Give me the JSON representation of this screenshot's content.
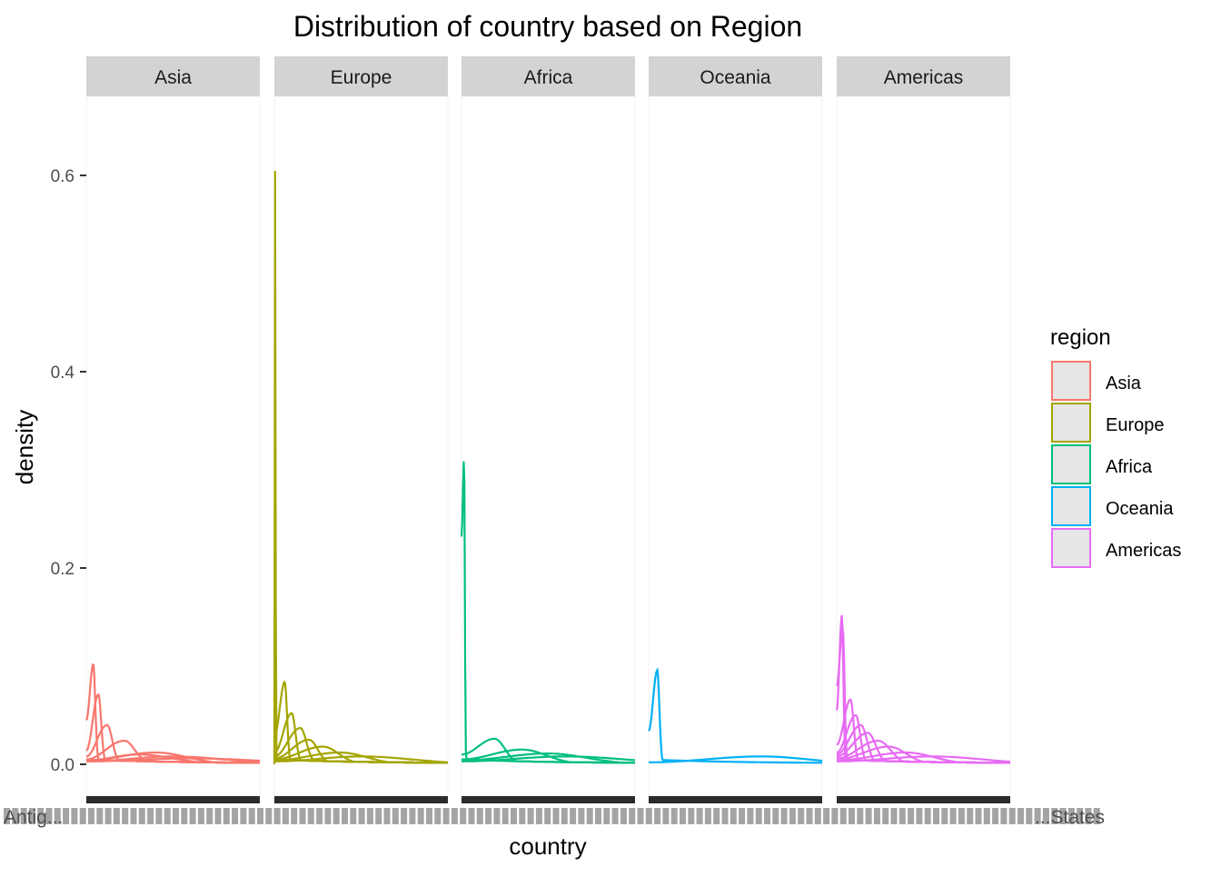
{
  "chart_data": {
    "type": "line",
    "title": "Distribution of country based on Region",
    "xlabel": "country",
    "ylabel": "density",
    "ylim": [
      -0.035,
      0.66
    ],
    "yticks": [
      0.0,
      0.2,
      0.4,
      0.6
    ],
    "ytick_labels": [
      "0.0",
      "0.2",
      "0.4",
      "0.6"
    ],
    "grid": false,
    "legend": {
      "title": "region",
      "position": "right",
      "entries": [
        {
          "label": "Asia",
          "color": "#F8766D"
        },
        {
          "label": "Europe",
          "color": "#A3A500"
        },
        {
          "label": "Africa",
          "color": "#00BF7D"
        },
        {
          "label": "Oceania",
          "color": "#00B0F6"
        },
        {
          "label": "Americas",
          "color": "#E76BF3"
        }
      ]
    },
    "facets": [
      {
        "label": "Asia",
        "color": "#F8766D",
        "curves": [
          {
            "peak": 0.102,
            "center": 0.04,
            "width": 0.012,
            "start": 0.045
          },
          {
            "peak": 0.071,
            "center": 0.07,
            "width": 0.016,
            "start": 0.014
          },
          {
            "peak": 0.04,
            "center": 0.12,
            "width": 0.03,
            "start": 0.008
          },
          {
            "peak": 0.024,
            "center": 0.22,
            "width": 0.06,
            "start": 0.005
          },
          {
            "peak": 0.012,
            "center": 0.4,
            "width": 0.18,
            "start": 0.004
          },
          {
            "peak": 0.01,
            "center": 0.3,
            "width": 0.2,
            "start": 0.004
          },
          {
            "peak": 0.008,
            "center": 0.5,
            "width": 0.3,
            "start": 0.003
          },
          {
            "peak": 0.006,
            "center": 0.6,
            "width": 0.4,
            "start": 0.003
          }
        ]
      },
      {
        "label": "Europe",
        "color": "#A3A500",
        "curves": [
          {
            "peak": 0.648,
            "center": 0.005,
            "width": 0.002,
            "start": 0.0
          },
          {
            "peak": 0.084,
            "center": 0.06,
            "width": 0.013,
            "start": 0.028
          },
          {
            "peak": 0.052,
            "center": 0.1,
            "width": 0.022,
            "start": 0.012
          },
          {
            "peak": 0.037,
            "center": 0.15,
            "width": 0.035,
            "start": 0.008
          },
          {
            "peak": 0.025,
            "center": 0.2,
            "width": 0.05,
            "start": 0.006
          },
          {
            "peak": 0.018,
            "center": 0.28,
            "width": 0.09,
            "start": 0.005
          },
          {
            "peak": 0.012,
            "center": 0.38,
            "width": 0.15,
            "start": 0.004
          },
          {
            "peak": 0.008,
            "center": 0.5,
            "width": 0.3,
            "start": 0.003
          }
        ]
      },
      {
        "label": "Africa",
        "color": "#00BF7D",
        "curves": [
          {
            "peak": 0.314,
            "center": 0.015,
            "width": 0.004,
            "start": 0.232
          },
          {
            "peak": 0.026,
            "center": 0.19,
            "width": 0.06,
            "start": 0.01
          },
          {
            "peak": 0.015,
            "center": 0.35,
            "width": 0.14,
            "start": 0.005
          },
          {
            "peak": 0.011,
            "center": 0.5,
            "width": 0.22,
            "start": 0.004
          },
          {
            "peak": 0.008,
            "center": 0.6,
            "width": 0.35,
            "start": 0.003
          }
        ]
      },
      {
        "label": "Oceania",
        "color": "#00B0F6",
        "curves": [
          {
            "peak": 0.096,
            "center": 0.05,
            "width": 0.012,
            "start": 0.034
          },
          {
            "peak": 0.008,
            "center": 0.65,
            "width": 0.28,
            "start": 0.002
          }
        ]
      },
      {
        "label": "Americas",
        "color": "#E76BF3",
        "curves": [
          {
            "peak": 0.152,
            "center": 0.03,
            "width": 0.008,
            "start": 0.055
          },
          {
            "peak": 0.138,
            "center": 0.035,
            "width": 0.01,
            "start": 0.08
          },
          {
            "peak": 0.066,
            "center": 0.08,
            "width": 0.018,
            "start": 0.02
          },
          {
            "peak": 0.05,
            "center": 0.11,
            "width": 0.025,
            "start": 0.012
          },
          {
            "peak": 0.04,
            "center": 0.14,
            "width": 0.035,
            "start": 0.01
          },
          {
            "peak": 0.032,
            "center": 0.18,
            "width": 0.045,
            "start": 0.008
          },
          {
            "peak": 0.024,
            "center": 0.24,
            "width": 0.07,
            "start": 0.006
          },
          {
            "peak": 0.018,
            "center": 0.3,
            "width": 0.1,
            "start": 0.005
          },
          {
            "peak": 0.012,
            "center": 0.4,
            "width": 0.16,
            "start": 0.004
          },
          {
            "peak": 0.008,
            "center": 0.55,
            "width": 0.3,
            "start": 0.003
          }
        ]
      }
    ],
    "xtick_label_fragments": [
      {
        "facet": 0,
        "align": "start",
        "text": "Antig..."
      },
      {
        "facet": 4,
        "align": "end",
        "text": "...States"
      }
    ]
  }
}
